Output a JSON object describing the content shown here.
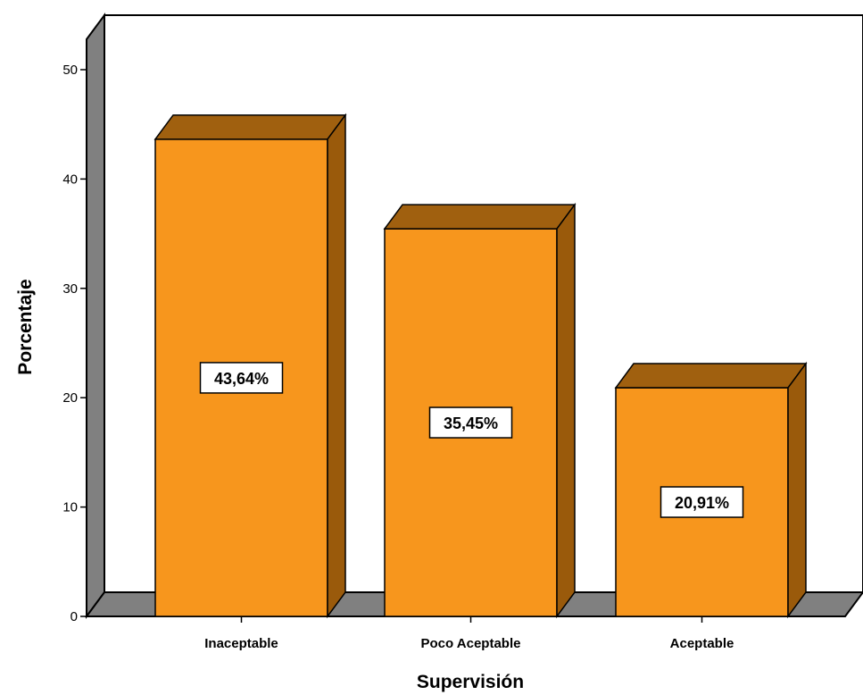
{
  "chart_data": {
    "type": "bar",
    "categories": [
      "Inaceptable",
      "Poco Aceptable",
      "Aceptable"
    ],
    "values": [
      43.64,
      35.45,
      20.91
    ],
    "data_labels": [
      "43,64%",
      "35,45%",
      "20,91%"
    ],
    "xlabel": "Supervisión",
    "ylabel": "Porcentaje",
    "ylim": [
      0,
      50
    ],
    "yticks": [
      0,
      10,
      20,
      30,
      40,
      50
    ],
    "grid": false,
    "legend": "none",
    "style": "3d"
  },
  "colors": {
    "bar_front": "#f7961d",
    "bar_top": "#a0600f",
    "bar_side": "#9a5a0b",
    "floor": "#808080",
    "wall": "#ffffff",
    "wall_side": "#808080",
    "outline": "#000000"
  }
}
